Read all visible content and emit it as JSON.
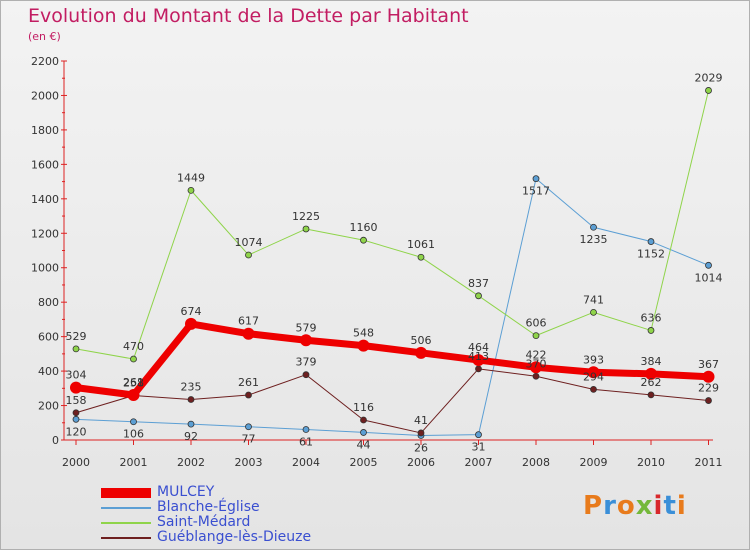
{
  "title": "Evolution du Montant de la Dette par Habitant",
  "subtitle": "(en €)",
  "logo": {
    "text": "Proxiti",
    "colors": [
      "#e87b1c",
      "#3a8fd8",
      "#e87b1c",
      "#74b83a",
      "#d8282c",
      "#3a8fd8",
      "#e87b1c"
    ]
  },
  "chart_data": {
    "type": "line",
    "title": "Evolution du Montant de la Dette par Habitant",
    "ylabel": "(en €)",
    "xlabel": "",
    "x": [
      "2000",
      "2001",
      "2002",
      "2003",
      "2004",
      "2005",
      "2006",
      "2007",
      "2008",
      "2009",
      "2010",
      "2011"
    ],
    "ylim": [
      0,
      2200
    ],
    "yticks": [
      0,
      200,
      400,
      600,
      800,
      1000,
      1200,
      1400,
      1600,
      1800,
      2000,
      2200
    ],
    "grid": false,
    "legend_position": "bottom-left",
    "series": [
      {
        "name": "MULCEY",
        "color": "#ee0000",
        "values": [
          304,
          261,
          674,
          617,
          579,
          548,
          506,
          464,
          422,
          393,
          384,
          367
        ],
        "labels": [
          "304",
          "261",
          "674",
          "617",
          "579",
          "548",
          "506",
          "464",
          "422",
          "393",
          "384",
          "367"
        ]
      },
      {
        "name": "Blanche-Église",
        "color": "#5c9fd4",
        "values": [
          120,
          106,
          92,
          77,
          61,
          44,
          26,
          31,
          1517,
          1235,
          1152,
          1014
        ],
        "labels": [
          "120",
          "106",
          "92",
          "77",
          "61",
          "44",
          "26",
          "31",
          "1517",
          "1235",
          "1152",
          "1014"
        ]
      },
      {
        "name": "Saint-Médard",
        "color": "#8fd44a",
        "values": [
          529,
          470,
          1449,
          1074,
          1225,
          1160,
          1061,
          837,
          606,
          741,
          636,
          2029
        ],
        "labels": [
          "529",
          "470",
          "1449",
          "1074",
          "1225",
          "1160",
          "1061",
          "837",
          "606",
          "741",
          "636",
          "2029"
        ]
      },
      {
        "name": "Guéblange-lès-Dieuze",
        "color": "#6e2020",
        "values": [
          158,
          258,
          235,
          261,
          379,
          116,
          41,
          413,
          370,
          294,
          262,
          229
        ],
        "labels": [
          "158",
          "258",
          "235",
          "261",
          "379",
          "116",
          "41",
          "413",
          "370",
          "294",
          "262",
          "229"
        ]
      }
    ]
  }
}
